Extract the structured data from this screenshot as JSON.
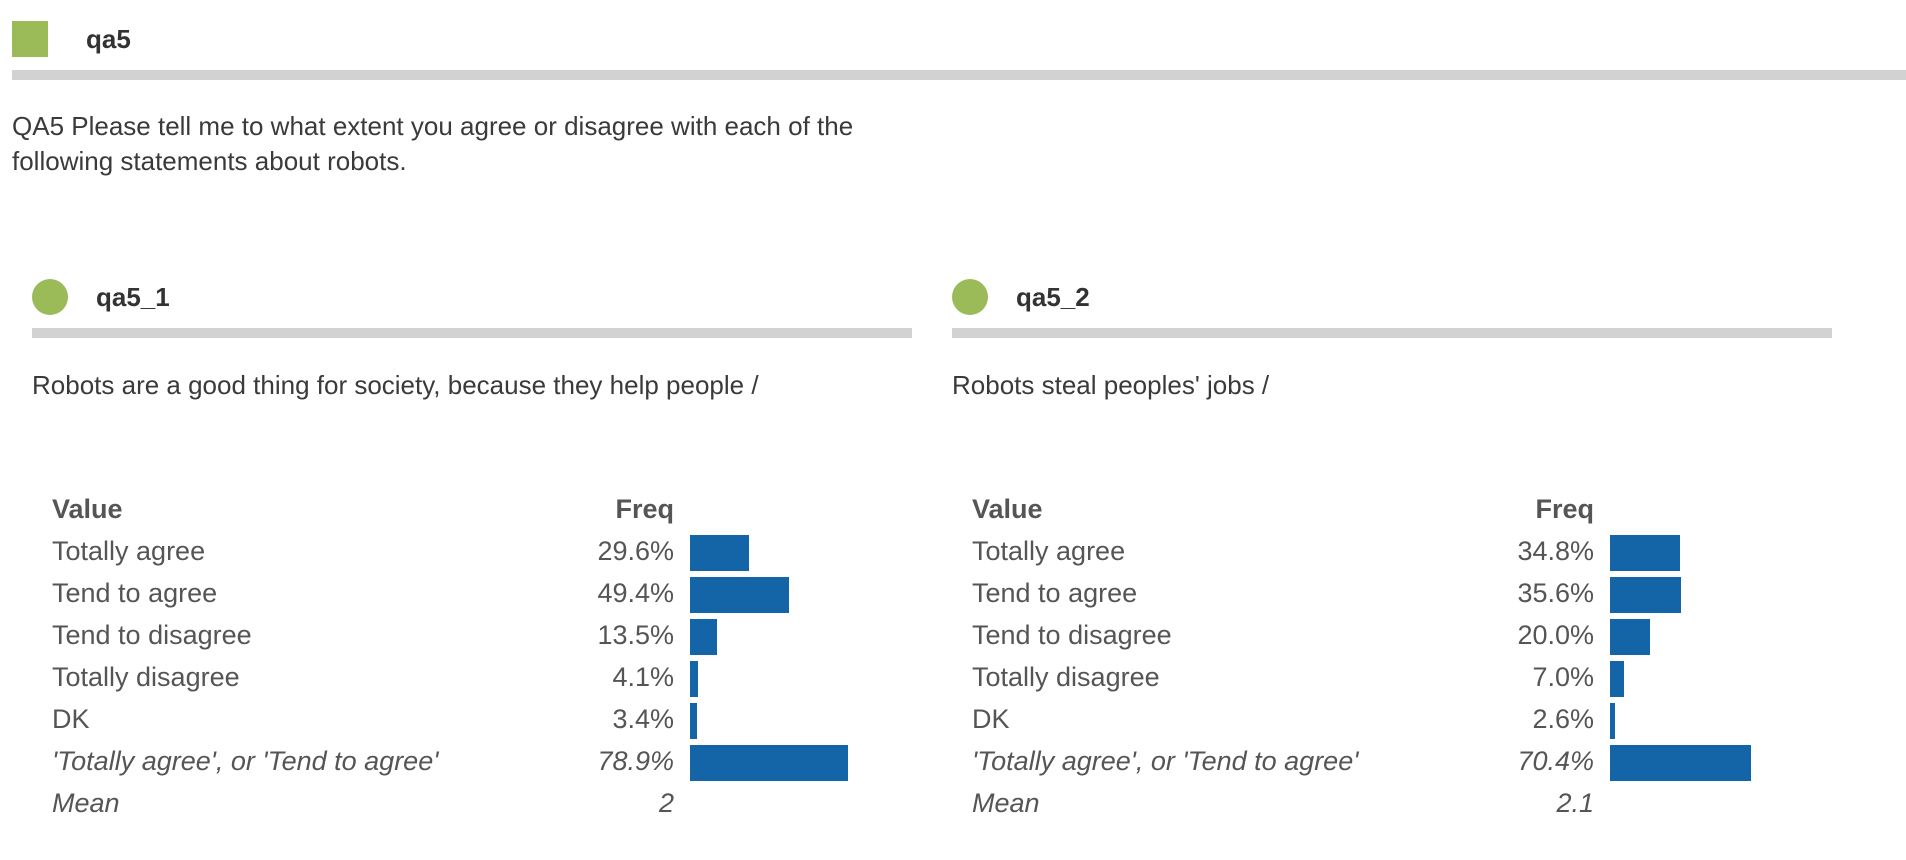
{
  "header": {
    "title": "qa5",
    "question": "QA5 Please tell me to what extent you agree or disagree with each of the following statements about robots."
  },
  "colors": {
    "marker": "#9bbb59",
    "bar": "#1464a8",
    "rule": "#d2d2d2"
  },
  "panels": [
    {
      "title": "qa5_1",
      "description": "Robots are a good thing for society, because they help people /",
      "col_value": "Value",
      "col_freq": "Freq",
      "rows": [
        {
          "label": "Totally agree",
          "freq": "29.6%",
          "pct": 29.6
        },
        {
          "label": "Tend to agree",
          "freq": "49.4%",
          "pct": 49.4
        },
        {
          "label": "Tend to disagree",
          "freq": "13.5%",
          "pct": 13.5
        },
        {
          "label": "Totally disagree",
          "freq": "4.1%",
          "pct": 4.1
        },
        {
          "label": "DK",
          "freq": "3.4%",
          "pct": 3.4
        }
      ],
      "summary": {
        "label": "'Totally agree', or 'Tend to agree'",
        "freq": "78.9%",
        "pct": 78.9
      },
      "mean": {
        "label": "Mean",
        "value": "2"
      }
    },
    {
      "title": "qa5_2",
      "description": "Robots steal peoples' jobs /",
      "col_value": "Value",
      "col_freq": "Freq",
      "rows": [
        {
          "label": "Totally agree",
          "freq": "34.8%",
          "pct": 34.8
        },
        {
          "label": "Tend to agree",
          "freq": "35.6%",
          "pct": 35.6
        },
        {
          "label": "Tend to disagree",
          "freq": "20.0%",
          "pct": 20.0
        },
        {
          "label": "Totally disagree",
          "freq": "7.0%",
          "pct": 7.0
        },
        {
          "label": "DK",
          "freq": "2.6%",
          "pct": 2.6
        }
      ],
      "summary": {
        "label": "'Totally agree', or 'Tend to agree'",
        "freq": "70.4%",
        "pct": 70.4
      },
      "mean": {
        "label": "Mean",
        "value": "2.1"
      }
    }
  ]
}
